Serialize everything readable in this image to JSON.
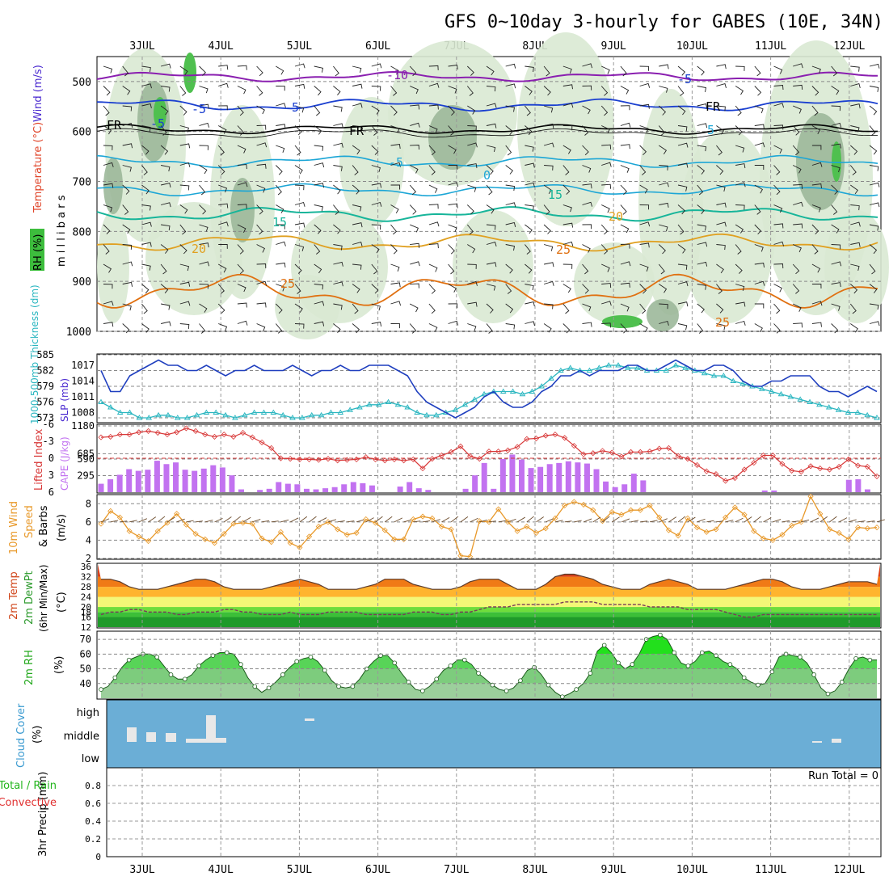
{
  "title": "GFS 0~10day 3-hourly for GABES (10E, 34N)",
  "days": [
    "3JUL",
    "4JUL",
    "5JUL",
    "6JUL",
    "7JUL",
    "8JUL",
    "9JUL",
    "10JUL",
    "11JUL",
    "12JUL"
  ],
  "colors": {
    "purple": "#8a1fb0",
    "blue": "#1a3fd0",
    "cyan": "#1ca6d6",
    "teal": "#17b59a",
    "orange": "#e0a020",
    "darkorange": "#e07010",
    "magenta": "#d0108a",
    "slp": "#1f3fbf",
    "thk": "#2ab6c0",
    "cape": "#c272f0",
    "lifted": "#d83838",
    "wind": "#e8992a",
    "cloudbg": "#6baed6",
    "rhgreen": "#22d11c"
  },
  "chart_data": [
    {
      "panel": "upper-air",
      "type": "contour",
      "ylabel_parts": [
        "Wind (m/s)",
        "Temperature (°C)",
        "RH (%)",
        "m i l l i b a r s"
      ],
      "yticks": [
        500,
        600,
        700,
        800,
        900,
        1000
      ],
      "ylim": [
        450,
        1000
      ],
      "contour_labels": [
        "-10",
        "-5",
        "-5",
        "-5",
        "FR",
        "FR",
        "FR",
        "-5",
        "5",
        "-5",
        "0",
        "15",
        "15",
        "20",
        "20",
        "25",
        "25",
        "25"
      ]
    },
    {
      "panel": "slp-thickness",
      "type": "line",
      "ylabel_left": "1000-500mb Thickness (dm)",
      "ylabel_right": "SLP (mb)",
      "yticks_left": [
        573,
        576,
        579,
        582,
        585
      ],
      "yticks_right": [
        1008,
        1011,
        1014,
        1017
      ],
      "series": [
        {
          "name": "SLP (mb)",
          "values": [
            1016,
            1012,
            1012,
            1015,
            1016,
            1017,
            1018,
            1017,
            1017,
            1016,
            1016,
            1017,
            1016,
            1015,
            1016,
            1016,
            1017,
            1016,
            1016,
            1016,
            1017,
            1016,
            1015,
            1016,
            1016,
            1017,
            1016,
            1016,
            1017,
            1017,
            1017,
            1016,
            1015,
            1012,
            1010,
            1009,
            1008,
            1007,
            1008,
            1009,
            1011,
            1012,
            1010,
            1009,
            1009,
            1010,
            1012,
            1013,
            1015,
            1015,
            1016,
            1015,
            1016,
            1016,
            1016,
            1017,
            1017,
            1016,
            1016,
            1017,
            1018,
            1017,
            1016,
            1016,
            1017,
            1017,
            1016,
            1014,
            1013,
            1013,
            1014,
            1014,
            1015,
            1015,
            1015,
            1013,
            1012,
            1012,
            1011,
            1012,
            1013,
            1012
          ]
        },
        {
          "name": "Thickness (dm)",
          "values": [
            576,
            575,
            574,
            574,
            573,
            573,
            573.5,
            573.5,
            573,
            573,
            573.5,
            574,
            574,
            573.5,
            573,
            573.5,
            574,
            574,
            574,
            573.5,
            573,
            573,
            573.5,
            573.5,
            574,
            574,
            574.5,
            575,
            575.5,
            575.5,
            576,
            575.5,
            575,
            574,
            573.5,
            573.5,
            574,
            574.5,
            575.5,
            576.5,
            577.5,
            578,
            578,
            578,
            577.5,
            578,
            579,
            580.5,
            582,
            582.5,
            582,
            582,
            582.5,
            583,
            583,
            582.5,
            582.5,
            582,
            582,
            582,
            583,
            582.5,
            582,
            581.5,
            581,
            581,
            580,
            579.5,
            579,
            578.5,
            578,
            577.5,
            577,
            576.5,
            576,
            575.5,
            575,
            574.5,
            574,
            574,
            573.5,
            573
          ]
        }
      ]
    },
    {
      "panel": "cape-lifted-index",
      "type": "bar",
      "ylabel_left": "Lifted Index",
      "ylabel_right": "CAPE (J/kg)",
      "yticks_left": [
        "-6",
        "-3",
        "0",
        "3",
        "6"
      ],
      "yticks_right": [
        295,
        590,
        685,
        1180
      ],
      "series": [
        {
          "name": "CAPE (J/kg)",
          "values": [
            150,
            230,
            310,
            410,
            380,
            400,
            560,
            500,
            530,
            400,
            380,
            420,
            480,
            440,
            300,
            50,
            0,
            40,
            60,
            180,
            150,
            140,
            60,
            50,
            70,
            90,
            140,
            180,
            160,
            120,
            0,
            0,
            100,
            180,
            70,
            40,
            0,
            0,
            0,
            60,
            300,
            520,
            60,
            590,
            670,
            580,
            430,
            450,
            500,
            520,
            550,
            530,
            510,
            410,
            190,
            90,
            140,
            330,
            210,
            0,
            0,
            0,
            0,
            0,
            0,
            0,
            0,
            0,
            0,
            0,
            0,
            30,
            30,
            0,
            0,
            0,
            0,
            0,
            0,
            0,
            220,
            230,
            50,
            0
          ]
        },
        {
          "name": "Lifted Index",
          "values": [
            -3.7,
            -3.8,
            -4.2,
            -4.2,
            -4.6,
            -4.8,
            -4.5,
            -4.2,
            -4.6,
            -5.3,
            -4.8,
            -4.2,
            -3.8,
            -4.2,
            -3.8,
            -4.5,
            -3.7,
            -2.8,
            -1.8,
            0.0,
            0.1,
            0.2,
            0.2,
            0.3,
            0.1,
            0.4,
            0.3,
            0.2,
            -0.2,
            0.2,
            0.4,
            0.2,
            0.4,
            0.2,
            1.8,
            0.1,
            -0.5,
            -1.1,
            -2.1,
            -0.4,
            0.1,
            -1.2,
            -1.2,
            -1.4,
            -2.0,
            -3.4,
            -3.5,
            -4.0,
            -4.2,
            -3.6,
            -2.2,
            -0.7,
            -0.9,
            -1.3,
            -1.0,
            -0.3,
            -1.1,
            -1.1,
            -1.2,
            -1.7,
            -1.8,
            -0.4,
            0.1,
            1.2,
            2.3,
            2.8,
            4.0,
            3.5,
            2.0,
            0.8,
            -0.5,
            -0.5,
            1.0,
            2.2,
            2.4,
            1.4,
            1.8,
            2.0,
            1.5,
            0.2,
            1.3,
            1.5,
            3.2
          ]
        }
      ]
    },
    {
      "panel": "10m-wind",
      "type": "line",
      "ylabel_parts": [
        "10m Wind",
        "Speed",
        "& Barbs",
        "(m/s)"
      ],
      "yticks": [
        2,
        4,
        6,
        8
      ],
      "series": [
        {
          "name": "Speed (m/s)",
          "values": [
            5.8,
            7.2,
            6.5,
            5.0,
            4.4,
            3.9,
            5.0,
            5.9,
            6.9,
            5.7,
            4.7,
            4.1,
            3.7,
            4.7,
            5.8,
            5.9,
            5.8,
            4.2,
            3.8,
            4.9,
            3.7,
            3.2,
            4.4,
            5.5,
            6.0,
            5.2,
            4.6,
            4.8,
            6.3,
            5.9,
            5.1,
            4.1,
            4.1,
            6.3,
            6.6,
            6.4,
            5.5,
            5.2,
            2.3,
            2.2,
            6.1,
            6.0,
            7.4,
            6.0,
            5.0,
            5.5,
            4.8,
            5.3,
            6.4,
            7.8,
            8.2,
            7.9,
            7.3,
            6.1,
            7.1,
            6.8,
            7.3,
            7.3,
            7.8,
            6.5,
            5.1,
            4.5,
            6.4,
            5.4,
            4.9,
            5.2,
            6.5,
            7.6,
            6.8,
            5.0,
            4.2,
            4.0,
            4.6,
            5.6,
            6.0,
            8.8,
            6.9,
            5.2,
            4.8,
            4.1,
            5.4,
            5.3,
            5.4
          ]
        }
      ]
    },
    {
      "panel": "2m-temp-dewpoint",
      "type": "area",
      "ylabel_parts": [
        "2m Temp",
        "2m DewPt",
        "(6hr Min/Max)",
        "(°C)"
      ],
      "yticks": [
        12,
        16,
        18,
        20,
        24,
        28,
        32,
        36
      ],
      "series": [
        {
          "name": "2m Temp (°C)",
          "values": [
            31,
            31,
            30,
            28,
            27,
            27,
            27,
            28,
            29,
            30,
            31,
            31,
            30,
            28,
            27,
            27,
            27,
            27,
            28,
            29,
            30,
            31,
            30,
            29,
            27,
            27,
            27,
            27,
            28,
            29,
            31,
            31,
            31,
            29,
            28,
            27,
            27,
            27,
            28,
            30,
            31,
            31,
            31,
            29,
            27,
            27,
            27,
            29,
            32,
            33,
            33,
            32,
            31,
            29,
            28,
            27,
            27,
            27,
            29,
            30,
            31,
            30,
            29,
            27,
            27,
            27,
            27,
            28,
            29,
            30,
            31,
            31,
            30,
            28,
            27,
            27,
            27,
            28,
            29,
            30,
            30,
            30,
            29
          ]
        },
        {
          "name": "2m DewPt (°C)",
          "values": [
            17,
            18,
            18,
            19,
            19,
            18,
            18,
            18,
            17,
            17,
            18,
            18,
            18,
            19,
            19,
            18,
            18,
            17,
            17,
            17,
            18,
            17,
            17,
            17,
            18,
            18,
            18,
            18,
            17,
            17,
            17,
            17,
            17,
            18,
            18,
            18,
            17,
            17,
            18,
            18,
            19,
            20,
            20,
            20,
            21,
            21,
            21,
            21,
            21,
            22,
            22,
            22,
            22,
            21,
            21,
            21,
            21,
            21,
            20,
            20,
            20,
            20,
            19,
            19,
            19,
            19,
            18,
            17,
            16,
            16,
            17,
            17,
            17,
            17,
            17,
            17,
            17,
            17,
            17,
            17,
            17,
            17,
            17
          ]
        }
      ]
    },
    {
      "panel": "2m-rh",
      "type": "area",
      "ylabel_parts": [
        "2m RH",
        "(%)"
      ],
      "yticks": [
        40,
        50,
        60,
        70
      ],
      "series": [
        {
          "name": "2m RH (%)",
          "values": [
            36,
            38,
            44,
            51,
            56,
            58,
            60,
            60,
            58,
            52,
            46,
            43,
            43,
            46,
            52,
            56,
            59,
            61,
            61,
            60,
            53,
            44,
            38,
            34,
            37,
            41,
            46,
            51,
            55,
            57,
            58,
            55,
            49,
            42,
            38,
            37,
            38,
            43,
            50,
            55,
            59,
            59,
            54,
            47,
            41,
            36,
            35,
            38,
            43,
            49,
            52,
            56,
            56,
            53,
            47,
            43,
            39,
            36,
            35,
            37,
            42,
            49,
            51,
            46,
            39,
            34,
            31,
            33,
            36,
            40,
            47,
            62,
            66,
            61,
            54,
            50,
            53,
            60,
            70,
            72,
            73,
            70,
            61,
            54,
            52,
            55,
            61,
            62,
            59,
            55,
            53,
            50,
            44,
            41,
            39,
            40,
            48,
            58,
            60,
            59,
            58,
            54,
            46,
            37,
            33,
            35,
            41,
            50,
            57,
            58,
            56,
            56
          ]
        }
      ]
    },
    {
      "panel": "cloud-cover",
      "type": "bar",
      "ylabel_parts": [
        "Cloud Cover",
        "(%)"
      ],
      "level_labels": [
        "high",
        "middle",
        "low"
      ]
    },
    {
      "panel": "precip",
      "type": "bar",
      "ylabel_parts": [
        "3hr Precip (mm)",
        "Total / Rain",
        "Convective"
      ],
      "yticks": [
        "0",
        "0.2",
        "0.4",
        "0.6",
        "0.8"
      ],
      "annotation": "Run Total = 0",
      "values": [
        0,
        0,
        0,
        0,
        0,
        0,
        0,
        0,
        0,
        0
      ]
    }
  ]
}
